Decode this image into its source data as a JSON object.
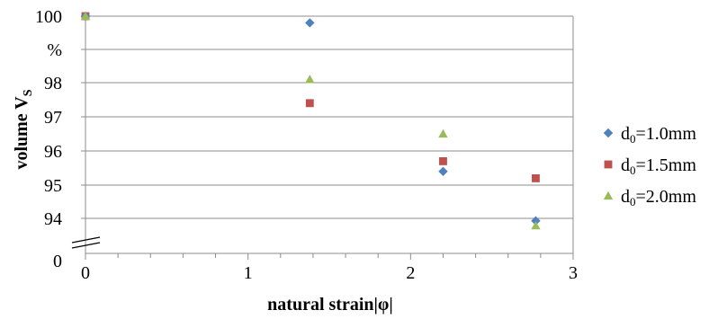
{
  "chart_data": {
    "type": "scatter",
    "title": "",
    "xlabel": "natural strain|φ|",
    "ylabel": {
      "main": "volume V",
      "sub": "S",
      "unit": "%"
    },
    "xlim": [
      0,
      3
    ],
    "x_ticks": [
      "0",
      "1",
      "2",
      "3"
    ],
    "y_ticks": [
      {
        "label": "100",
        "value": 100
      },
      {
        "label": "98",
        "value": 98
      },
      {
        "label": "97",
        "value": 97
      },
      {
        "label": "96",
        "value": 96
      },
      {
        "label": "95",
        "value": 95
      },
      {
        "label": "94",
        "value": 94
      },
      {
        "label": "0",
        "value": 0
      }
    ],
    "y_axis_break": {
      "between": [
        0,
        93.3
      ]
    },
    "ylim_upper": [
      93.3,
      100
    ],
    "grid": "horizontal",
    "legend_position": "right",
    "series": [
      {
        "name": "d0=1.0mm",
        "legend": {
          "base": "d",
          "sub": "0",
          "rest": "=1.0mm"
        },
        "marker": "diamond",
        "color": "#4F81BD",
        "points": [
          [
            0,
            100
          ],
          [
            1.38,
            99.8
          ],
          [
            2.2,
            95.4
          ],
          [
            2.77,
            93.9
          ]
        ]
      },
      {
        "name": "d0=1.5mm",
        "legend": {
          "base": "d",
          "sub": "0",
          "rest": "=1.5mm"
        },
        "marker": "square",
        "color": "#C0504D",
        "points": [
          [
            0,
            100
          ],
          [
            1.38,
            97.4
          ],
          [
            2.2,
            95.7
          ],
          [
            2.77,
            95.2
          ]
        ]
      },
      {
        "name": "d0=2.0mm",
        "legend": {
          "base": "d",
          "sub": "0",
          "rest": "=2.0mm"
        },
        "marker": "triangle",
        "color": "#9BBB59",
        "points": [
          [
            0,
            100
          ],
          [
            1.38,
            98.1
          ],
          [
            2.2,
            96.5
          ],
          [
            2.77,
            93.7
          ]
        ]
      }
    ]
  }
}
